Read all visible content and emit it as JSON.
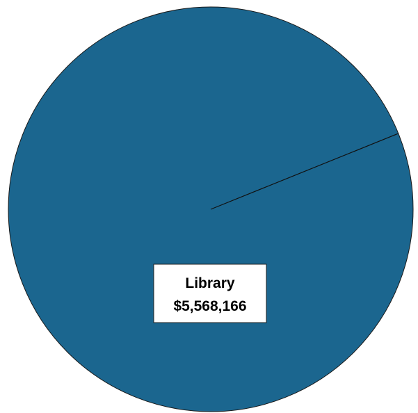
{
  "chart_data": {
    "type": "pie",
    "title": "",
    "slices": [
      {
        "label": "Library",
        "value_label": "$5,568,166",
        "value": 5568166,
        "color": "#1b668f"
      },
      {
        "label": "",
        "value_label": "",
        "value": 0,
        "color": "#1b668f"
      }
    ],
    "start_angle_deg": 22,
    "legend": "none"
  }
}
